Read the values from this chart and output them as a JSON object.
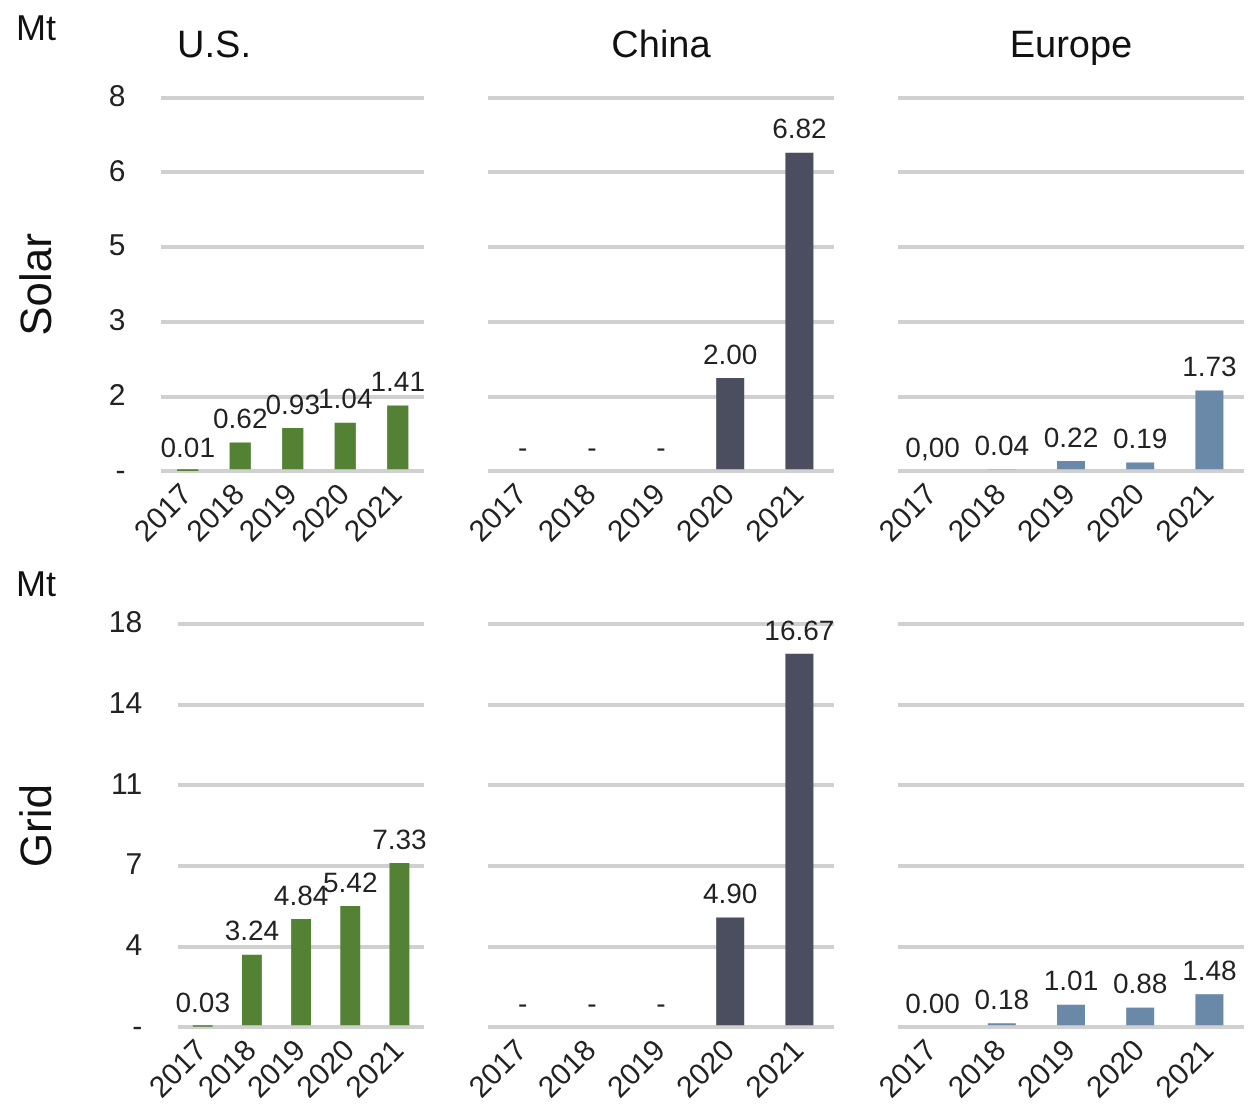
{
  "chart_data": [
    {
      "type": "bar",
      "title": "U.S.",
      "ylabel": "Solar",
      "annotations": [
        "Mt"
      ],
      "categories": [
        "2017",
        "2018",
        "2019",
        "2020",
        "2021"
      ],
      "values": [
        0.01,
        0.62,
        0.93,
        1.04,
        1.41
      ],
      "value_labels": [
        "0.01",
        "0.62",
        "0.93",
        "1.04",
        "1.41"
      ],
      "color": "#548235",
      "ylim": [
        0,
        8
      ],
      "yticks": [
        {
          "value": 0,
          "label": "-"
        },
        {
          "value": 1.6,
          "label": "2"
        },
        {
          "value": 3.2,
          "label": "3"
        },
        {
          "value": 4.8,
          "label": "5"
        },
        {
          "value": 6.4,
          "label": "6"
        },
        {
          "value": 8,
          "label": "8"
        }
      ],
      "grid": "y"
    },
    {
      "type": "bar",
      "title": "China",
      "categories": [
        "2017",
        "2018",
        "2019",
        "2020",
        "2021"
      ],
      "values": [
        null,
        null,
        null,
        2.0,
        6.82
      ],
      "value_labels": [
        "-",
        "-",
        "-",
        "2.00",
        "6.82"
      ],
      "color": "#4b4e5e",
      "ylim": [
        0,
        8
      ],
      "yticks": [
        {
          "value": 0,
          "label": null
        },
        {
          "value": 1.6,
          "label": null
        },
        {
          "value": 3.2,
          "label": null
        },
        {
          "value": 4.8,
          "label": null
        },
        {
          "value": 6.4,
          "label": null
        },
        {
          "value": 8,
          "label": null
        }
      ],
      "grid": "y",
      "tick_labels": "x"
    },
    {
      "type": "bar",
      "title": "Europe",
      "categories": [
        "2017",
        "2018",
        "2019",
        "2020",
        "2021"
      ],
      "values": [
        0.0,
        0.04,
        0.22,
        0.19,
        1.73
      ],
      "value_labels": [
        "0,00",
        "0.04",
        "0.22",
        "0.19",
        "1.73"
      ],
      "color": "#6a88a8",
      "ylim": [
        0,
        8
      ],
      "yticks": [
        {
          "value": 0,
          "label": null
        },
        {
          "value": 1.6,
          "label": null
        },
        {
          "value": 3.2,
          "label": null
        },
        {
          "value": 4.8,
          "label": null
        },
        {
          "value": 6.4,
          "label": null
        },
        {
          "value": 8,
          "label": null
        }
      ],
      "grid": "y",
      "tick_labels": "x"
    },
    {
      "type": "bar",
      "ylabel": "Grid",
      "annotations": [
        "Mt"
      ],
      "categories": [
        "2017",
        "2018",
        "2019",
        "2020",
        "2021"
      ],
      "values": [
        0.03,
        3.24,
        4.84,
        5.42,
        7.33
      ],
      "value_labels": [
        "0.03",
        "3.24",
        "4.84",
        "5.42",
        "7.33"
      ],
      "color": "#548235",
      "ylim": [
        0,
        18
      ],
      "yticks": [
        {
          "value": 0,
          "label": "-"
        },
        {
          "value": 3.6,
          "label": "4"
        },
        {
          "value": 7.2,
          "label": "7"
        },
        {
          "value": 10.8,
          "label": "11"
        },
        {
          "value": 14.4,
          "label": "14"
        },
        {
          "value": 18,
          "label": "18"
        }
      ],
      "grid": "y"
    },
    {
      "type": "bar",
      "categories": [
        "2017",
        "2018",
        "2019",
        "2020",
        "2021"
      ],
      "values": [
        null,
        null,
        null,
        4.9,
        16.67
      ],
      "value_labels": [
        "-",
        "-",
        "-",
        "4.90",
        "16.67"
      ],
      "color": "#4b4e5e",
      "ylim": [
        0,
        18
      ],
      "yticks": [
        {
          "value": 0,
          "label": null
        },
        {
          "value": 3.6,
          "label": null
        },
        {
          "value": 7.2,
          "label": null
        },
        {
          "value": 10.8,
          "label": null
        },
        {
          "value": 14.4,
          "label": null
        },
        {
          "value": 18,
          "label": null
        }
      ],
      "grid": "y",
      "tick_labels": "x"
    },
    {
      "type": "bar",
      "categories": [
        "2017",
        "2018",
        "2019",
        "2020",
        "2021"
      ],
      "values": [
        0.0,
        0.18,
        1.01,
        0.88,
        1.48
      ],
      "value_labels": [
        "0.00",
        "0.18",
        "1.01",
        "0.88",
        "1.48"
      ],
      "color": "#6a88a8",
      "ylim": [
        0,
        18
      ],
      "yticks": [
        {
          "value": 0,
          "label": null
        },
        {
          "value": 3.6,
          "label": null
        },
        {
          "value": 7.2,
          "label": null
        },
        {
          "value": 10.8,
          "label": null
        },
        {
          "value": 14.4,
          "label": null
        },
        {
          "value": 18,
          "label": null
        }
      ],
      "grid": "y",
      "tick_labels": "x"
    }
  ]
}
